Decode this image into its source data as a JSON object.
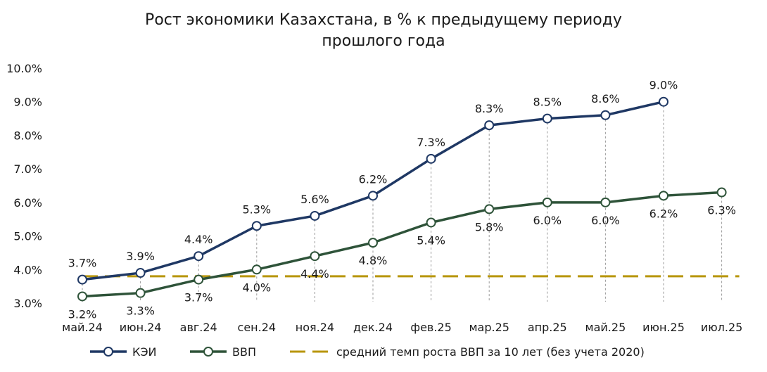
{
  "chart_data": {
    "type": "line",
    "title": "Рост экономики Казахстана, в % к предыдущему периоду прошлого года",
    "title_lines": [
      "Рост экономики Казахстана, в % к предыдущему периоду",
      "прошлого года"
    ],
    "categories": [
      "май.24",
      "июн.24",
      "авг.24",
      "сен.24",
      "ноя.24",
      "дек.24",
      "фев.25",
      "мар.25",
      "апр.25",
      "май.25",
      "июн.25",
      "июл.25"
    ],
    "ylim": [
      3.0,
      10.0
    ],
    "yticks": [
      3.0,
      4.0,
      5.0,
      6.0,
      7.0,
      8.0,
      9.0,
      10.0
    ],
    "ytick_labels": [
      "3.0%",
      "4.0%",
      "5.0%",
      "6.0%",
      "7.0%",
      "8.0%",
      "9.0%",
      "10.0%"
    ],
    "grid": false,
    "legend_position": "bottom",
    "series": [
      {
        "name": "КЭИ",
        "color": "#1f3864",
        "values": [
          3.7,
          3.9,
          4.4,
          5.3,
          5.6,
          6.2,
          7.3,
          8.3,
          8.5,
          8.6,
          9.0,
          null
        ],
        "labels": [
          "3.7%",
          "3.9%",
          "4.4%",
          "5.3%",
          "5.6%",
          "6.2%",
          "7.3%",
          "8.3%",
          "8.5%",
          "8.6%",
          "9.0%",
          ""
        ],
        "label_position": "above"
      },
      {
        "name": "ВВП",
        "color": "#2e5339",
        "values": [
          3.2,
          3.3,
          3.7,
          4.0,
          4.4,
          4.8,
          5.4,
          5.8,
          6.0,
          6.0,
          6.2,
          6.3
        ],
        "labels": [
          "3.2%",
          "3.3%",
          "3.7%",
          "4.0%",
          "4.4%",
          "4.8%",
          "5.4%",
          "5.8%",
          "6.0%",
          "6.0%",
          "6.2%",
          "6.3%"
        ],
        "label_position": "below"
      },
      {
        "name": "средний темп роста ВВП за 10 лет (без учета 2020)",
        "color": "#b8960c",
        "style": "dashed",
        "values": [
          3.8,
          3.8,
          3.8,
          3.8,
          3.8,
          3.8,
          3.8,
          3.8,
          3.8,
          3.8,
          3.8,
          3.8
        ]
      }
    ]
  }
}
